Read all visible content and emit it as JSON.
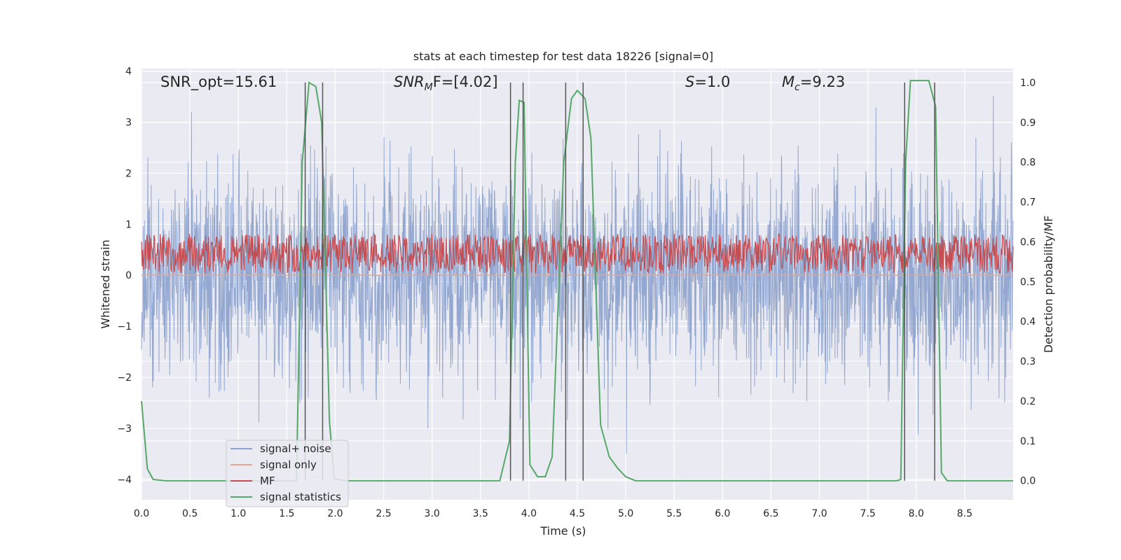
{
  "chart_data": {
    "type": "line",
    "title": "stats at each timestep for test data 18226 [signal=0]",
    "xlabel": "Time (s)",
    "ylabel": "Whitened strain",
    "ylabel_right": "Detection probability/MF",
    "xlim": [
      0,
      9.0
    ],
    "ylim": [
      -4.4,
      4.05
    ],
    "ylim_right": [
      -0.048,
      1.035
    ],
    "xticks": [
      "0.0",
      "0.5",
      "1.0",
      "1.5",
      "2.0",
      "2.5",
      "3.0",
      "3.5",
      "4.0",
      "4.5",
      "5.0",
      "5.5",
      "6.0",
      "6.5",
      "7.0",
      "7.5",
      "8.0",
      "8.5"
    ],
    "yticks": [
      "4",
      "3",
      "2",
      "1",
      "0",
      "−1",
      "−2",
      "−3",
      "−4"
    ],
    "yticks_right": [
      "1.0",
      "0.9",
      "0.8",
      "0.7",
      "0.6",
      "0.5",
      "0.4",
      "0.3",
      "0.2",
      "0.1",
      "0.0"
    ],
    "grid": true,
    "legend_placement": "lower-left",
    "annotations": {
      "snr_opt": "SNR_opt=15.61",
      "snr_mf_main": "SNR",
      "snr_mf_sub": "M",
      "snr_mf_rest": "F=[4.02]",
      "s_main": "S",
      "s_rest": "=1.0",
      "mc_main": "M",
      "mc_sub": "c",
      "mc_rest": "=9.23"
    },
    "vertical_lines_x": [
      1.69,
      1.87,
      3.81,
      3.94,
      4.38,
      4.56,
      7.88,
      8.19
    ],
    "series": [
      {
        "name": "signal+ noise",
        "color": "#8ea3cd",
        "kind": "noise",
        "axis": "left",
        "amplitude_std": 1.0,
        "range": [
          -3.5,
          3.6
        ]
      },
      {
        "name": "signal only",
        "color": "#e9a58a",
        "axis": "left",
        "y": 0.0
      },
      {
        "name": "MF",
        "color": "#c44e52",
        "kind": "noise",
        "axis": "right",
        "range": [
          0.52,
          0.62
        ]
      },
      {
        "name": "signal statistics",
        "color": "#55a868",
        "axis": "right",
        "points": [
          [
            0.0,
            0.2
          ],
          [
            0.06,
            0.03
          ],
          [
            0.12,
            0.003
          ],
          [
            0.25,
            0.0
          ],
          [
            1.6,
            0.0
          ],
          [
            1.66,
            0.8
          ],
          [
            1.73,
            1.0
          ],
          [
            1.8,
            0.99
          ],
          [
            1.86,
            0.9
          ],
          [
            1.94,
            0.15
          ],
          [
            1.99,
            0.005
          ],
          [
            2.1,
            0.0
          ],
          [
            3.7,
            0.0
          ],
          [
            3.8,
            0.1
          ],
          [
            3.86,
            0.8
          ],
          [
            3.9,
            0.955
          ],
          [
            3.95,
            0.95
          ],
          [
            4.01,
            0.04
          ],
          [
            4.09,
            0.01
          ],
          [
            4.17,
            0.01
          ],
          [
            4.24,
            0.06
          ],
          [
            4.36,
            0.8
          ],
          [
            4.44,
            0.96
          ],
          [
            4.5,
            0.98
          ],
          [
            4.58,
            0.96
          ],
          [
            4.64,
            0.86
          ],
          [
            4.74,
            0.14
          ],
          [
            4.83,
            0.06
          ],
          [
            4.92,
            0.03
          ],
          [
            5.0,
            0.01
          ],
          [
            5.1,
            0.0
          ],
          [
            7.8,
            0.0
          ],
          [
            7.84,
            0.003
          ],
          [
            7.89,
            0.8
          ],
          [
            7.94,
            1.005
          ],
          [
            8.13,
            1.005
          ],
          [
            8.2,
            0.94
          ],
          [
            8.26,
            0.02
          ],
          [
            8.32,
            0.0
          ],
          [
            9.0,
            0.0
          ]
        ]
      }
    ]
  }
}
